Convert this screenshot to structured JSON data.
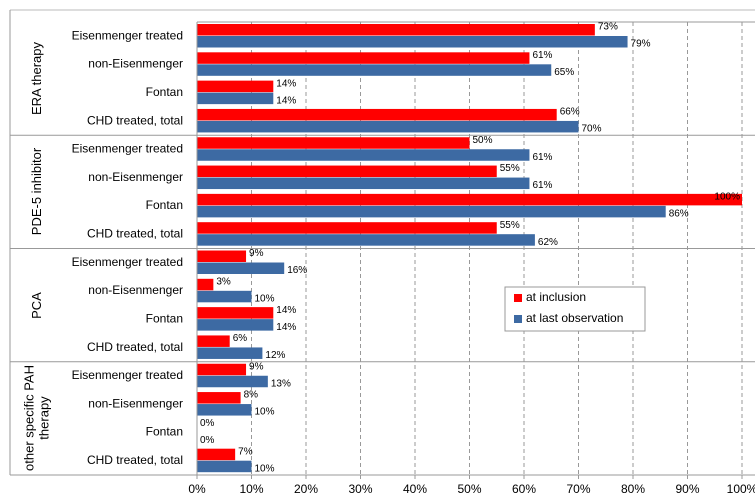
{
  "chart_data": {
    "type": "grouped-hbar",
    "groups": [
      {
        "name": "ERA therapy",
        "categories": [
          "Eisenmenger treated",
          "non-Eisenmenger",
          "Fontan",
          "CHD treated, total"
        ]
      },
      {
        "name": "PDE-5 inhibitor",
        "categories": [
          "Eisenmenger treated",
          "non-Eisenmenger",
          "Fontan",
          "CHD treated, total"
        ]
      },
      {
        "name": "PCA",
        "categories": [
          "Eisenmenger treated",
          "non-Eisenmenger",
          "Fontan",
          "CHD treated, total"
        ]
      },
      {
        "name": "other specific PAH therapy",
        "categories": [
          "Eisenmenger treated",
          "non-Eisenmenger",
          "Fontan",
          "CHD treated, total"
        ]
      }
    ],
    "series": [
      {
        "name": "at inclusion",
        "color": "#ff0000",
        "values": [
          73,
          61,
          14,
          66,
          50,
          55,
          100,
          55,
          9,
          3,
          14,
          6,
          9,
          8,
          0,
          7
        ],
        "value_labels": [
          "73%",
          "61%",
          "14%",
          "66%",
          "50%",
          "55%",
          "100%",
          "55%",
          "9%",
          "3%",
          "14%",
          "6%",
          "9%",
          "8%",
          "0%",
          "7%"
        ]
      },
      {
        "name": "at last observation",
        "color": "#3d6aa3",
        "values": [
          79,
          65,
          14,
          70,
          61,
          61,
          86,
          62,
          16,
          10,
          14,
          12,
          13,
          10,
          0,
          10
        ],
        "value_labels": [
          "79%",
          "65%",
          "14%",
          "70%",
          "61%",
          "61%",
          "86%",
          "62%",
          "16%",
          "10%",
          "14%",
          "12%",
          "13%",
          "10%",
          "0%",
          "10%"
        ]
      }
    ],
    "xlim": [
      0,
      100
    ],
    "xticks": [
      {
        "value": 0,
        "label": "0%"
      },
      {
        "value": 10,
        "label": "10%"
      },
      {
        "value": 20,
        "label": "20%"
      },
      {
        "value": 30,
        "label": "30%"
      },
      {
        "value": 40,
        "label": "40%"
      },
      {
        "value": 50,
        "label": "50%"
      },
      {
        "value": 60,
        "label": "60%"
      },
      {
        "value": 70,
        "label": "70%"
      },
      {
        "value": 80,
        "label": "80%"
      },
      {
        "value": 90,
        "label": "90%"
      },
      {
        "value": 100,
        "label": "100%"
      }
    ],
    "grid": true
  }
}
